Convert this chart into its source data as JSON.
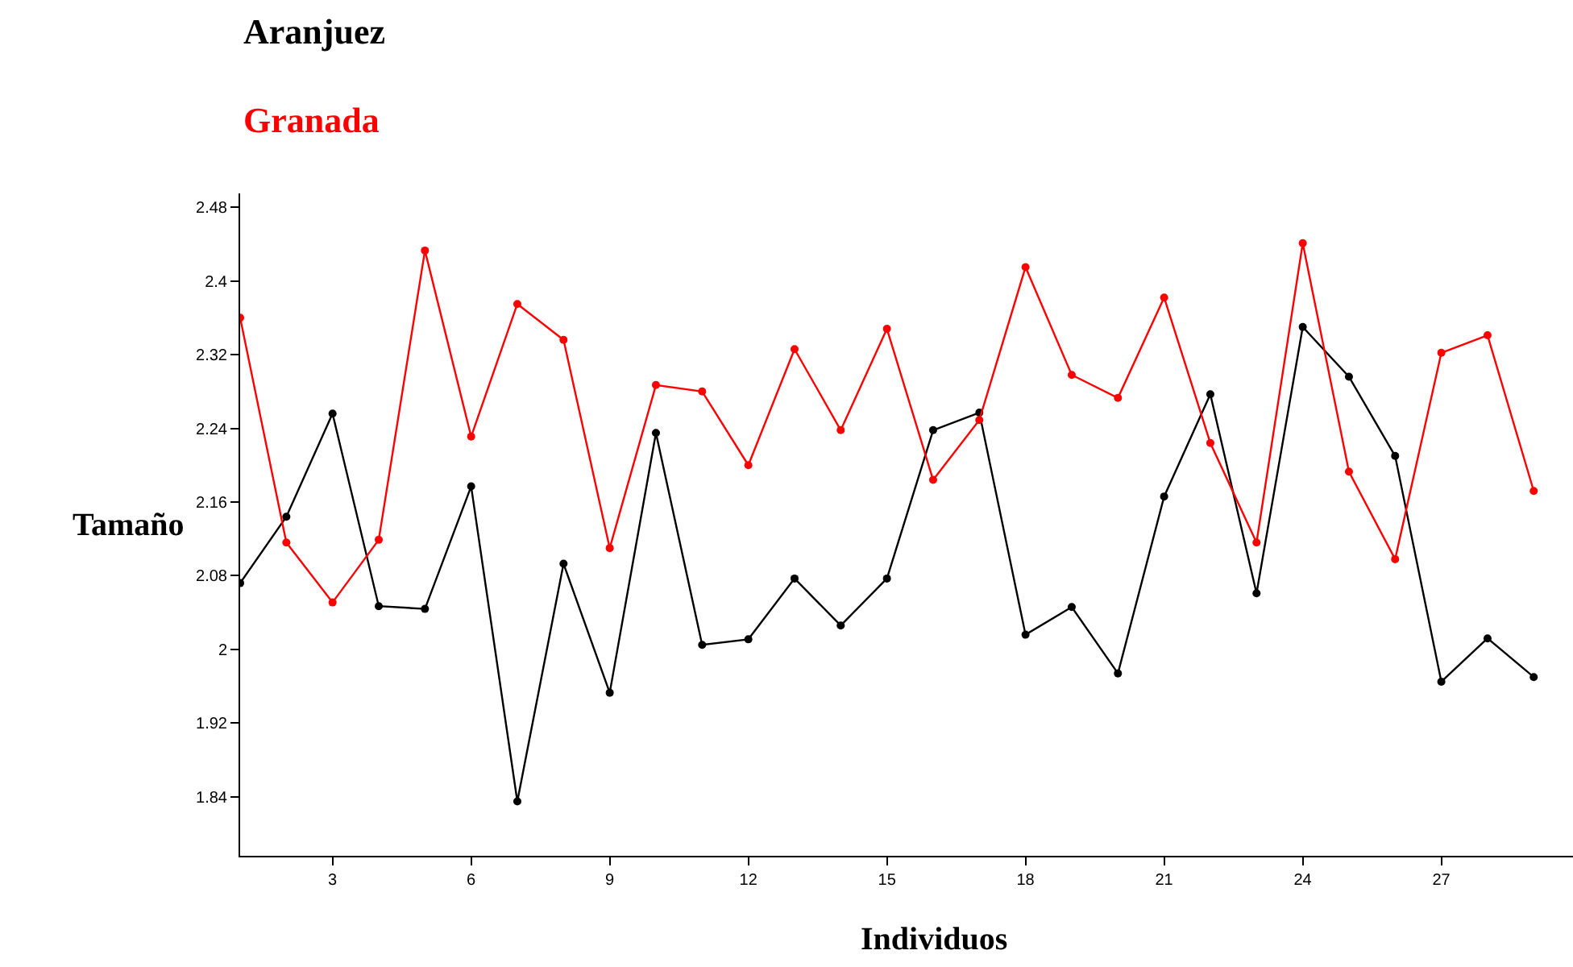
{
  "chart_data": {
    "type": "line",
    "xlabel": "Individuos",
    "ylabel": "Tamaño",
    "x": [
      1,
      2,
      3,
      4,
      5,
      6,
      7,
      8,
      9,
      10,
      11,
      12,
      13,
      14,
      15,
      16,
      17,
      18,
      19,
      20,
      21,
      22,
      23,
      24,
      25,
      26,
      27,
      28,
      29
    ],
    "series": [
      {
        "name": "Aranjuez",
        "color": "#000000",
        "values": [
          2.072,
          2.144,
          2.256,
          2.047,
          2.044,
          2.177,
          1.835,
          2.093,
          1.953,
          2.235,
          2.005,
          2.011,
          2.077,
          2.026,
          2.077,
          2.238,
          2.257,
          2.016,
          2.046,
          1.974,
          2.166,
          2.277,
          2.061,
          2.35,
          2.296,
          2.21,
          1.965,
          2.012,
          1.97
        ]
      },
      {
        "name": "Granada",
        "color": "#ff0000",
        "values": [
          2.36,
          2.116,
          2.051,
          2.119,
          2.433,
          2.231,
          2.375,
          2.336,
          2.11,
          2.287,
          2.28,
          2.2,
          2.326,
          2.238,
          2.348,
          2.184,
          2.249,
          2.415,
          2.298,
          2.273,
          2.382,
          2.224,
          2.116,
          2.441,
          2.193,
          2.098,
          2.322,
          2.341,
          2.172
        ]
      }
    ],
    "xlim": [
      1,
      29.85
    ],
    "xticks": [
      3,
      6,
      9,
      12,
      15,
      18,
      21,
      24,
      27
    ],
    "ylim": [
      1.776,
      2.495
    ],
    "yticks": [
      1.84,
      1.92,
      2,
      2.08,
      2.16,
      2.24,
      2.32,
      2.4,
      2.48
    ],
    "grid": false,
    "marker": "circle",
    "line_style": "solid"
  }
}
